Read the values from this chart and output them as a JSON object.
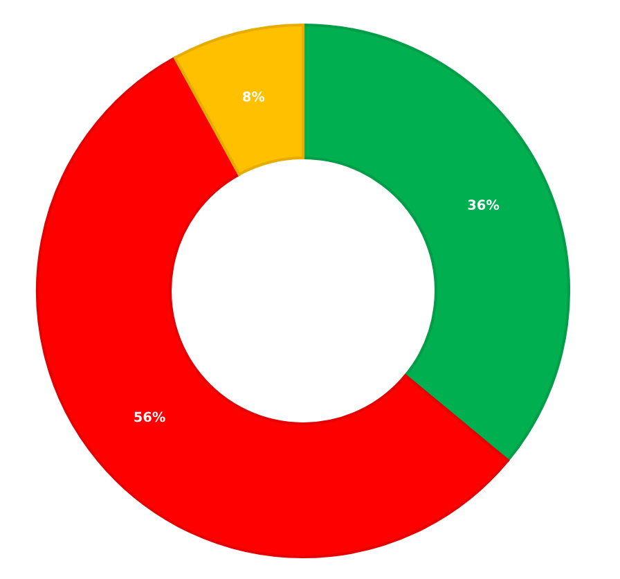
{
  "chart_data": {
    "type": "donut",
    "categories": [
      null,
      null,
      null
    ],
    "values": [
      36,
      56,
      8
    ],
    "colors": [
      "#00b050",
      "#ff0000",
      "#ffc000"
    ],
    "value_labels": [
      "36%",
      "56%",
      "8%"
    ]
  }
}
